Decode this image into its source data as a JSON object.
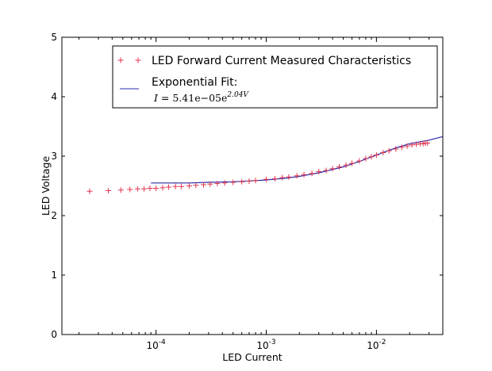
{
  "chart_data": {
    "type": "scatter",
    "xscale": "log",
    "xlabel": "LED Current",
    "ylabel": "LED Voltage",
    "xlim": [
      1.4e-05,
      0.04
    ],
    "ylim": [
      0,
      5
    ],
    "xticks": [
      {
        "value": 0.0001,
        "base": "10",
        "exp": "-4"
      },
      {
        "value": 0.001,
        "base": "10",
        "exp": "-3"
      },
      {
        "value": 0.01,
        "base": "10",
        "exp": "-2"
      }
    ],
    "yticks": [
      0,
      1,
      2,
      3,
      4,
      5
    ],
    "legend_position": "top-right",
    "series": [
      {
        "name": "LED Forward Current Measured Characteristics",
        "kind": "marker",
        "marker": "+",
        "color": "#e0344e",
        "points": [
          [
            2.5e-05,
            2.41
          ],
          [
            3.7e-05,
            2.42
          ],
          [
            4.8e-05,
            2.43
          ],
          [
            5.8e-05,
            2.44
          ],
          [
            6.8e-05,
            2.45
          ],
          [
            7.8e-05,
            2.45
          ],
          [
            8.8e-05,
            2.46
          ],
          [
            0.0001,
            2.46
          ],
          [
            0.000115,
            2.47
          ],
          [
            0.00013,
            2.48
          ],
          [
            0.00015,
            2.49
          ],
          [
            0.00017,
            2.49
          ],
          [
            0.0002,
            2.5
          ],
          [
            0.00023,
            2.51
          ],
          [
            0.00027,
            2.52
          ],
          [
            0.00031,
            2.53
          ],
          [
            0.00036,
            2.54
          ],
          [
            0.00042,
            2.55
          ],
          [
            0.0005,
            2.56
          ],
          [
            0.0006,
            2.57
          ],
          [
            0.0007,
            2.58
          ],
          [
            0.0008,
            2.59
          ],
          [
            0.001,
            2.61
          ],
          [
            0.0012,
            2.62
          ],
          [
            0.0014,
            2.64
          ],
          [
            0.0016,
            2.65
          ],
          [
            0.0019,
            2.67
          ],
          [
            0.0022,
            2.69
          ],
          [
            0.0026,
            2.71
          ],
          [
            0.003,
            2.74
          ],
          [
            0.0035,
            2.76
          ],
          [
            0.004,
            2.79
          ],
          [
            0.0046,
            2.82
          ],
          [
            0.0053,
            2.85
          ],
          [
            0.006,
            2.88
          ],
          [
            0.007,
            2.92
          ],
          [
            0.008,
            2.96
          ],
          [
            0.009,
            2.99
          ],
          [
            0.01,
            3.02
          ],
          [
            0.0115,
            3.06
          ],
          [
            0.013,
            3.09
          ],
          [
            0.015,
            3.12
          ],
          [
            0.017,
            3.15
          ],
          [
            0.019,
            3.17
          ],
          [
            0.021,
            3.19
          ],
          [
            0.023,
            3.2
          ],
          [
            0.025,
            3.21
          ],
          [
            0.0265,
            3.21
          ],
          [
            0.0278,
            3.22
          ],
          [
            0.029,
            3.22
          ]
        ]
      },
      {
        "name": "Exponential Fit:",
        "equation": {
          "lhs": "I",
          "mid": " = 5.41e−05e",
          "sup": "2.04V"
        },
        "kind": "line",
        "color": "#2a2aa8",
        "points": [
          [
            9e-05,
            2.55
          ],
          [
            0.0001,
            2.55
          ],
          [
            0.00015,
            2.55
          ],
          [
            0.0002,
            2.55
          ],
          [
            0.0003,
            2.56
          ],
          [
            0.0005,
            2.57
          ],
          [
            0.0008,
            2.59
          ],
          [
            0.001,
            2.6
          ],
          [
            0.0015,
            2.63
          ],
          [
            0.002,
            2.66
          ],
          [
            0.003,
            2.72
          ],
          [
            0.005,
            2.82
          ],
          [
            0.007,
            2.91
          ],
          [
            0.01,
            3.02
          ],
          [
            0.015,
            3.14
          ],
          [
            0.02,
            3.21
          ],
          [
            0.03,
            3.27
          ],
          [
            0.04,
            3.33
          ]
        ]
      }
    ]
  }
}
